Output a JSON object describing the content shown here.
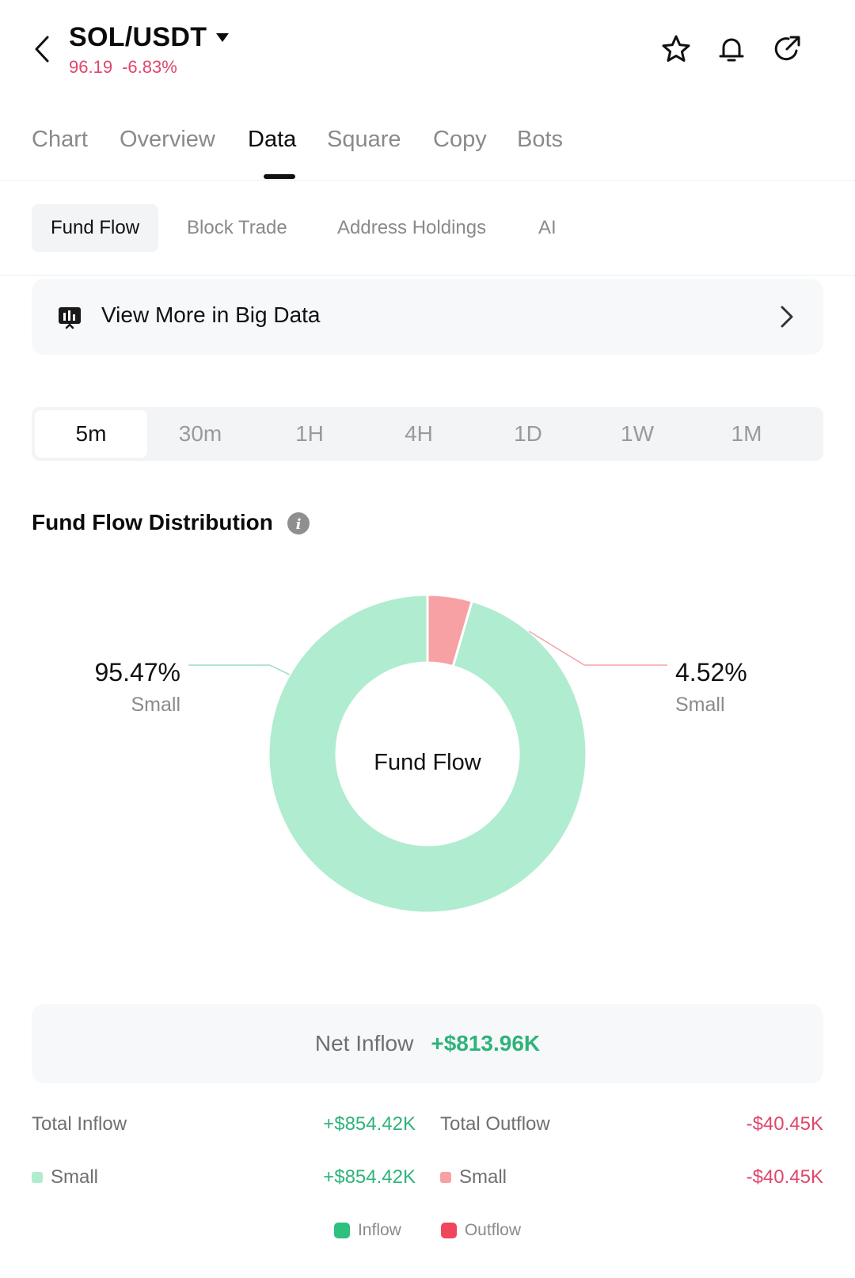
{
  "header": {
    "pair": "SOL/USDT",
    "price": "96.19",
    "change": "-6.83%"
  },
  "main_tabs": [
    {
      "label": "Chart"
    },
    {
      "label": "Overview"
    },
    {
      "label": "Data"
    },
    {
      "label": "Square"
    },
    {
      "label": "Copy"
    },
    {
      "label": "Bots"
    }
  ],
  "active_main_tab": "Data",
  "sub_tabs": [
    {
      "label": "Fund Flow"
    },
    {
      "label": "Block Trade"
    },
    {
      "label": "Address Holdings"
    },
    {
      "label": "AI"
    }
  ],
  "active_sub_tab": "Fund Flow",
  "banner": {
    "text": "View More in Big Data"
  },
  "time_ranges": [
    "5m",
    "30m",
    "1H",
    "4H",
    "1D",
    "1W",
    "1M"
  ],
  "active_time_range": "5m",
  "section": {
    "title": "Fund Flow Distribution"
  },
  "chart_data": {
    "type": "pie",
    "center_label": "Fund Flow",
    "slices": [
      {
        "label": "Small",
        "value": 95.47,
        "value_label": "95.47%",
        "group": "Inflow",
        "color": "#b0ecd0"
      },
      {
        "label": "Small",
        "value": 4.52,
        "value_label": "4.52%",
        "group": "Outflow",
        "color": "#f7a1a5"
      }
    ],
    "legend": [
      {
        "label": "Inflow",
        "color": "#2fbf7f"
      },
      {
        "label": "Outflow",
        "color": "#f0465c"
      }
    ]
  },
  "net_inflow": {
    "label": "Net Inflow",
    "value": "+$813.96K"
  },
  "summary": {
    "total_inflow": {
      "label": "Total Inflow",
      "value": "+$854.42K"
    },
    "total_outflow": {
      "label": "Total Outflow",
      "value": "-$40.45K"
    },
    "inflow_small": {
      "label": "Small",
      "value": "+$854.42K",
      "color": "#b0ecd0"
    },
    "outflow_small": {
      "label": "Small",
      "value": "-$40.45K",
      "color": "#f7a1a5"
    }
  },
  "colors": {
    "positive": "#2fb37a",
    "negative": "#e0466b"
  }
}
